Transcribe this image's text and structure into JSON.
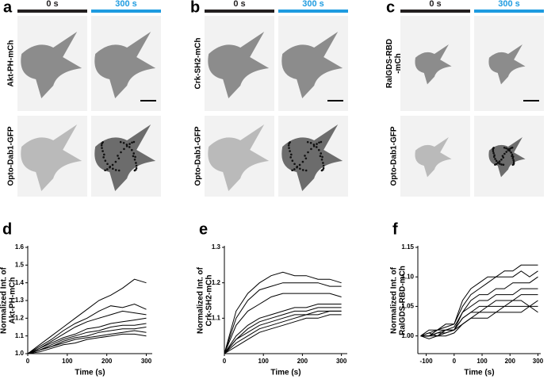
{
  "panels": [
    {
      "letter": "a",
      "times": [
        "0 s",
        "300 s"
      ],
      "rows": [
        [
          "Akt-PH-mCh"
        ],
        [
          "Opto-Dab1-GFP"
        ]
      ]
    },
    {
      "letter": "b",
      "times": [
        "0 s",
        "300 s"
      ],
      "rows": [
        [
          "Crk-SH2-mCh"
        ],
        [
          "Opto-Dab1-GFP"
        ]
      ]
    },
    {
      "letter": "c",
      "times": [
        "0 s",
        "300 s"
      ],
      "rows": [
        [
          "RalGDS-RBD",
          "-mCh"
        ],
        [
          "Opto-Dab1-GFP"
        ]
      ]
    }
  ],
  "chart_data": [
    {
      "letter": "d",
      "type": "line",
      "ylabel": [
        "Normalized Int. of",
        "Akt-PH-mCh"
      ],
      "xlabel": "Time (s)",
      "xlim": [
        0,
        315
      ],
      "ylim": [
        1.0,
        1.6
      ],
      "xticks": [
        0,
        100,
        200,
        300
      ],
      "yticks": [
        {
          "value": 1.0,
          "label": "1.0"
        },
        1.1,
        1.2,
        1.3,
        1.4,
        1.5,
        1.6
      ],
      "x": [
        0,
        30,
        60,
        90,
        120,
        150,
        180,
        210,
        240,
        270,
        300
      ],
      "series": [
        {
          "color": "#000000",
          "values": [
            1.0,
            1.05,
            1.1,
            1.15,
            1.2,
            1.25,
            1.3,
            1.33,
            1.37,
            1.42,
            1.4
          ]
        },
        {
          "color": "#000000",
          "values": [
            1.0,
            1.04,
            1.08,
            1.13,
            1.17,
            1.2,
            1.24,
            1.27,
            1.26,
            1.28,
            1.25
          ]
        },
        {
          "color": "#000000",
          "values": [
            1.0,
            1.03,
            1.07,
            1.11,
            1.15,
            1.18,
            1.2,
            1.22,
            1.24,
            1.23,
            1.22
          ]
        },
        {
          "color": "#000000",
          "values": [
            1.0,
            1.03,
            1.06,
            1.09,
            1.11,
            1.14,
            1.15,
            1.17,
            1.18,
            1.19,
            1.2
          ]
        },
        {
          "color": "#000000",
          "values": [
            1.0,
            1.02,
            1.05,
            1.08,
            1.1,
            1.12,
            1.13,
            1.15,
            1.16,
            1.16,
            1.17
          ]
        },
        {
          "color": "#000000",
          "values": [
            1.0,
            1.02,
            1.04,
            1.07,
            1.09,
            1.1,
            1.12,
            1.13,
            1.14,
            1.14,
            1.15
          ]
        },
        {
          "color": "#000000",
          "values": [
            1.0,
            1.02,
            1.04,
            1.06,
            1.08,
            1.09,
            1.1,
            1.11,
            1.12,
            1.13,
            1.12
          ]
        },
        {
          "color": "#000000",
          "values": [
            1.0,
            1.01,
            1.03,
            1.05,
            1.06,
            1.08,
            1.09,
            1.1,
            1.11,
            1.11,
            1.1
          ]
        }
      ]
    },
    {
      "letter": "e",
      "type": "line",
      "ylabel": [
        "Normalized Int. of",
        "Crk-SH2-mCh"
      ],
      "xlabel": "Time (s)",
      "xlim": [
        0,
        315
      ],
      "ylim": [
        1.0,
        1.3
      ],
      "xticks": [
        0,
        100,
        200,
        300
      ],
      "yticks": [
        1.1,
        1.2,
        1.3
      ],
      "x": [
        0,
        30,
        60,
        90,
        120,
        150,
        180,
        210,
        240,
        270,
        300
      ],
      "series": [
        {
          "color": "#000000",
          "values": [
            1.0,
            1.12,
            1.17,
            1.2,
            1.22,
            1.23,
            1.22,
            1.22,
            1.21,
            1.21,
            1.2
          ]
        },
        {
          "color": "#000000",
          "values": [
            1.0,
            1.1,
            1.15,
            1.18,
            1.19,
            1.2,
            1.2,
            1.2,
            1.2,
            1.19,
            1.19
          ]
        },
        {
          "color": "#000000",
          "values": [
            1.0,
            1.08,
            1.12,
            1.14,
            1.16,
            1.17,
            1.17,
            1.17,
            1.17,
            1.17,
            1.16
          ]
        },
        {
          "color": "#000000",
          "values": [
            1.0,
            1.05,
            1.08,
            1.1,
            1.11,
            1.12,
            1.13,
            1.13,
            1.14,
            1.14,
            1.14
          ]
        },
        {
          "color": "#000000",
          "values": [
            1.0,
            1.04,
            1.07,
            1.09,
            1.1,
            1.11,
            1.12,
            1.12,
            1.13,
            1.13,
            1.13
          ]
        },
        {
          "color": "#000000",
          "values": [
            1.0,
            1.04,
            1.06,
            1.08,
            1.09,
            1.1,
            1.11,
            1.11,
            1.12,
            1.12,
            1.12
          ]
        },
        {
          "color": "#000000",
          "values": [
            1.0,
            1.03,
            1.05,
            1.07,
            1.08,
            1.09,
            1.1,
            1.11,
            1.11,
            1.12,
            1.12
          ]
        },
        {
          "color": "#000000",
          "values": [
            1.0,
            1.02,
            1.04,
            1.06,
            1.07,
            1.08,
            1.09,
            1.1,
            1.1,
            1.11,
            1.11
          ]
        }
      ]
    },
    {
      "letter": "f",
      "type": "line",
      "ylabel": [
        "Normalized Int. of",
        "RalGDS-RBD-mCh"
      ],
      "xlabel": "Time (s)",
      "xlim": [
        -130,
        310
      ],
      "ylim": [
        0.97,
        1.15
      ],
      "xticks": [
        -100,
        0,
        100,
        200,
        300
      ],
      "yticks": [
        {
          "value": 1.0,
          "label": "1.00"
        },
        1.05,
        {
          "value": 1.1,
          "label": "1.10"
        },
        1.15
      ],
      "x": [
        -120,
        -90,
        -60,
        -30,
        0,
        30,
        60,
        90,
        120,
        150,
        180,
        210,
        240,
        270,
        300
      ],
      "series": [
        {
          "color": "#000000",
          "values": [
            1.0,
            1.005,
            1.01,
            1.015,
            1.02,
            1.06,
            1.08,
            1.09,
            1.1,
            1.1,
            1.11,
            1.11,
            1.12,
            1.12,
            1.12
          ]
        },
        {
          "color": "#000000",
          "values": [
            1.0,
            1.01,
            1.01,
            1.02,
            1.02,
            1.05,
            1.07,
            1.08,
            1.09,
            1.1,
            1.1,
            1.1,
            1.11,
            1.1,
            1.11
          ]
        },
        {
          "color": "#000000",
          "values": [
            1.0,
            1.0,
            1.01,
            1.01,
            1.015,
            1.04,
            1.06,
            1.07,
            1.07,
            1.08,
            1.08,
            1.09,
            1.09,
            1.09,
            1.1
          ]
        },
        {
          "color": "#000000",
          "values": [
            1.0,
            1.0,
            1.005,
            1.01,
            1.01,
            1.04,
            1.05,
            1.06,
            1.06,
            1.07,
            1.07,
            1.07,
            1.08,
            1.08,
            1.08
          ]
        },
        {
          "color": "#000000",
          "values": [
            1.0,
            1.005,
            1.0,
            1.01,
            1.01,
            1.03,
            1.04,
            1.05,
            1.05,
            1.06,
            1.06,
            1.06,
            1.07,
            1.07,
            1.07
          ]
        },
        {
          "color": "#000000",
          "values": [
            1.0,
            1.0,
            1.005,
            1.005,
            1.01,
            1.03,
            1.04,
            1.04,
            1.05,
            1.05,
            1.05,
            1.06,
            1.06,
            1.05,
            1.06
          ]
        },
        {
          "color": "#000000",
          "values": [
            1.0,
            1.0,
            1.0,
            1.005,
            1.01,
            1.02,
            1.03,
            1.04,
            1.04,
            1.04,
            1.05,
            1.05,
            1.05,
            1.05,
            1.05
          ]
        },
        {
          "color": "#000000",
          "values": [
            1.0,
            0.995,
            1.0,
            1.0,
            1.005,
            1.02,
            1.03,
            1.03,
            1.03,
            1.04,
            1.04,
            1.04,
            1.04,
            1.05,
            1.04
          ]
        }
      ]
    }
  ]
}
